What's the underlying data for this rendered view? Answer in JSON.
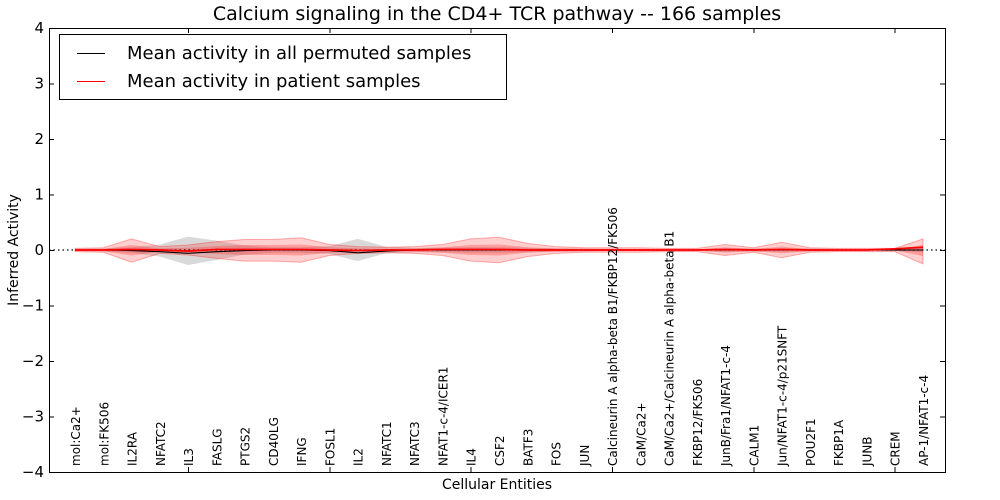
{
  "figure": {
    "title": "Calcium signaling in the CD4+ TCR pathway -- 166 samples",
    "xlabel": "Cellular Entities",
    "ylabel": "Inferred Activity"
  },
  "legend": {
    "entries": [
      {
        "label": "Mean activity in all permuted samples",
        "color": "#000000"
      },
      {
        "label": "Mean activity in patient samples",
        "color": "#ff0000"
      }
    ]
  },
  "chart_data": {
    "type": "line",
    "title": "Calcium signaling in the CD4+ TCR pathway -- 166 samples",
    "xlabel": "Cellular Entities",
    "ylabel": "Inferred Activity",
    "ylim": [
      -4,
      4
    ],
    "yticks": [
      -4,
      -3,
      -2,
      -1,
      0,
      1,
      2,
      3,
      4
    ],
    "xtick_positions": [
      5,
      10,
      15,
      20,
      25,
      30
    ],
    "grid": false,
    "legend_position": "upper left",
    "zero_line": {
      "style": "dotted",
      "color": "#000000",
      "y": 0
    },
    "categories": [
      "mol:Ca2+",
      "mol:FK506",
      "IL2RA",
      "NFATC2",
      "IL3",
      "FASLG",
      "PTGS2",
      "CD40LG",
      "IFNG",
      "FOSL1",
      "IL2",
      "NFATC1",
      "NFATC3",
      "NFAT1-c-4/ICER1",
      "IL4",
      "CSF2",
      "BATF3",
      "FOS",
      "JUN",
      "Calcineurin A alpha-beta B1/FKBP12/FK506",
      "CaM/Ca2+",
      "CaM/Ca2+/Calcineurin A alpha-beta B1",
      "FKBP12/FK506",
      "JunB/Fra1/NFAT1-c-4",
      "CALM1",
      "Jun/NFAT1-c-4/p21SNFT",
      "POU2F1",
      "FKBP1A",
      "JUNB",
      "CREM",
      "AP-1/NFAT1-c-4"
    ],
    "series": [
      {
        "name": "Mean activity in all permuted samples",
        "color": "#000000",
        "values": [
          0,
          0,
          -0.01,
          -0.03,
          -0.06,
          -0.03,
          -0.01,
          0,
          0,
          -0.01,
          -0.05,
          -0.02,
          0,
          0,
          0,
          0,
          0,
          0,
          0,
          0,
          0,
          0,
          0,
          0,
          0,
          0,
          0,
          0,
          0,
          0,
          0
        ]
      },
      {
        "name": "Mean activity in patient samples",
        "color": "#ff0000",
        "values": [
          0,
          0,
          0.01,
          0,
          -0.02,
          0.01,
          0.01,
          0.01,
          0.01,
          0,
          -0.01,
          0,
          0,
          0.01,
          0.01,
          0.01,
          0,
          0,
          0,
          0,
          0,
          0,
          0,
          0.01,
          0,
          0.01,
          0,
          0,
          0,
          0.02,
          0.05
        ]
      }
    ],
    "bands": [
      {
        "name": "permuted-std",
        "color": "#808080",
        "opacity": 0.3,
        "edge_opacity": 0,
        "upper": [
          0.02,
          0.03,
          0.05,
          0.1,
          0.24,
          0.17,
          0.08,
          0.05,
          0.05,
          0.07,
          0.2,
          0.06,
          0.04,
          0.04,
          0.05,
          0.05,
          0.04,
          0.03,
          0.03,
          0.02,
          0.02,
          0.02,
          0.02,
          0.03,
          0.03,
          0.03,
          0.03,
          0.02,
          0.02,
          0.02,
          0.04
        ],
        "lower": [
          -0.02,
          -0.03,
          -0.05,
          -0.12,
          -0.27,
          -0.18,
          -0.08,
          -0.05,
          -0.05,
          -0.07,
          -0.2,
          -0.06,
          -0.04,
          -0.04,
          -0.05,
          -0.05,
          -0.04,
          -0.03,
          -0.03,
          -0.02,
          -0.02,
          -0.02,
          -0.02,
          -0.03,
          -0.03,
          -0.03,
          -0.03,
          -0.02,
          -0.02,
          -0.02,
          -0.04
        ]
      },
      {
        "name": "patient-std",
        "color": "#ff0000",
        "opacity": 0.19,
        "edge_opacity": 0.3,
        "upper": [
          0.03,
          0.04,
          0.2,
          0.06,
          0.09,
          0.15,
          0.19,
          0.19,
          0.22,
          0.1,
          0.06,
          0.05,
          0.06,
          0.1,
          0.2,
          0.23,
          0.12,
          0.06,
          0.04,
          0.04,
          0.04,
          0.03,
          0.03,
          0.1,
          0.04,
          0.14,
          0.04,
          0.03,
          0.03,
          0.03,
          0.2
        ],
        "lower": [
          -0.03,
          -0.04,
          -0.22,
          -0.06,
          -0.09,
          -0.15,
          -0.2,
          -0.2,
          -0.22,
          -0.1,
          -0.06,
          -0.05,
          -0.06,
          -0.1,
          -0.2,
          -0.23,
          -0.12,
          -0.06,
          -0.04,
          -0.04,
          -0.04,
          -0.03,
          -0.03,
          -0.1,
          -0.04,
          -0.14,
          -0.04,
          -0.03,
          -0.03,
          -0.03,
          -0.25
        ]
      },
      {
        "name": "patient-sem",
        "color": "#ff0000",
        "opacity": 0.24,
        "edge_opacity": 0,
        "upper": [
          0.01,
          0.02,
          0.09,
          0.03,
          0.04,
          0.07,
          0.09,
          0.09,
          0.1,
          0.05,
          0.03,
          0.02,
          0.03,
          0.05,
          0.09,
          0.1,
          0.05,
          0.03,
          0.02,
          0.02,
          0.02,
          0.01,
          0.01,
          0.05,
          0.02,
          0.06,
          0.02,
          0.01,
          0.01,
          0.01,
          0.09
        ],
        "lower": [
          -0.01,
          -0.02,
          -0.1,
          -0.03,
          -0.04,
          -0.07,
          -0.09,
          -0.09,
          -0.1,
          -0.05,
          -0.03,
          -0.02,
          -0.03,
          -0.05,
          -0.09,
          -0.1,
          -0.05,
          -0.03,
          -0.02,
          -0.02,
          -0.02,
          -0.01,
          -0.01,
          -0.05,
          -0.02,
          -0.06,
          -0.02,
          -0.01,
          -0.01,
          -0.01,
          -0.11
        ]
      }
    ]
  }
}
